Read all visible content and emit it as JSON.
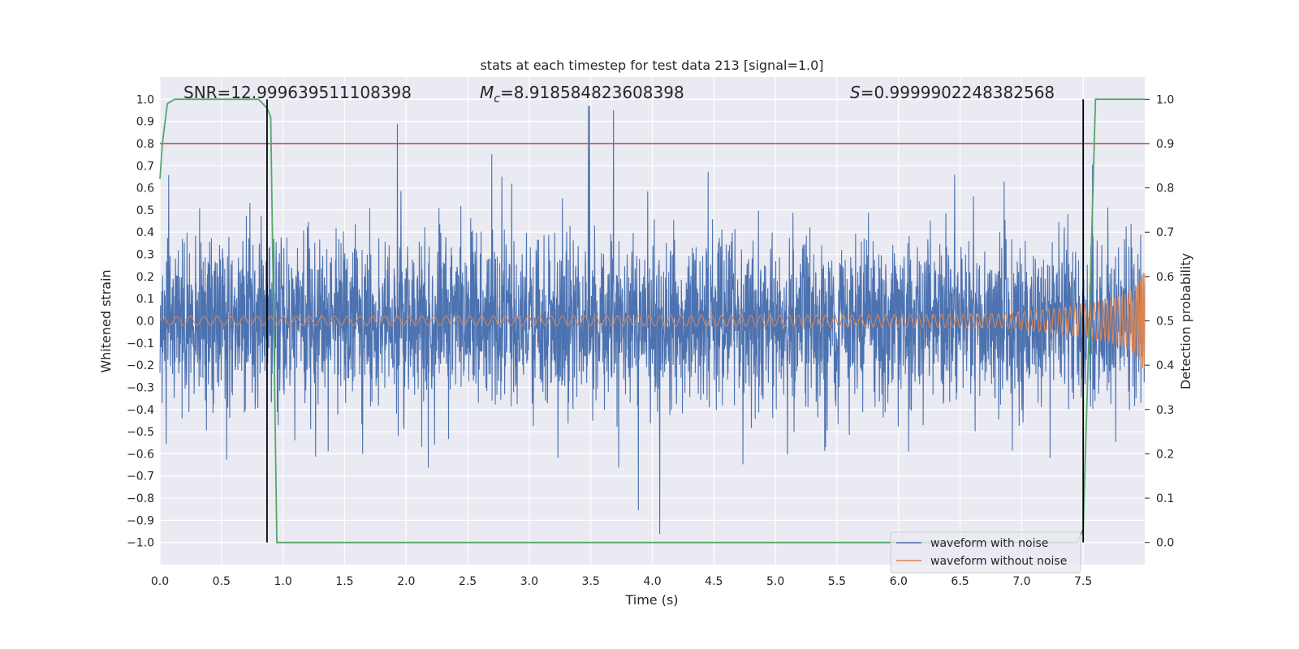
{
  "chart_data": {
    "type": "line",
    "title": "stats at each timestep for test data 213 [signal=1.0]",
    "xlabel": "Time (s)",
    "ylabel": "Whitened strain",
    "y2label": "Detection probability",
    "xlim": [
      0.0,
      8.0
    ],
    "ylim": [
      -1.1,
      1.1
    ],
    "y2lim": [
      -0.05,
      1.05
    ],
    "x_ticks": [
      "0.0",
      "0.5",
      "1.0",
      "1.5",
      "2.0",
      "2.5",
      "3.0",
      "3.5",
      "4.0",
      "4.5",
      "5.0",
      "5.5",
      "6.0",
      "6.5",
      "7.0",
      "7.5"
    ],
    "y_ticks": [
      "−1.0",
      "−0.9",
      "−0.8",
      "−0.7",
      "−0.6",
      "−0.5",
      "−0.4",
      "−0.3",
      "−0.2",
      "−0.1",
      "0.0",
      "0.1",
      "0.2",
      "0.3",
      "0.4",
      "0.5",
      "0.6",
      "0.7",
      "0.8",
      "0.9",
      "1.0"
    ],
    "y2_ticks": [
      "0.0",
      "0.1",
      "0.2",
      "0.3",
      "0.4",
      "0.5",
      "0.6",
      "0.7",
      "0.8",
      "0.9",
      "1.0"
    ],
    "grid": true,
    "legend": "lower-right",
    "annotations": {
      "snr": "SNR=12.999639511108398",
      "mc_symbol": "M",
      "mc_sub": "c",
      "mc_value": "=8.918584823608398",
      "s_symbol": "S",
      "s_value": "=0.9999902248382568"
    },
    "series": [
      {
        "name": "waveform with noise",
        "color": "#4c72b0",
        "kind": "noise",
        "approx_envelope": [
          -0.45,
          0.45
        ],
        "approx_extremes": [
          -1.0,
          0.97
        ]
      },
      {
        "name": "waveform without noise",
        "color": "#dd8452",
        "kind": "chirp",
        "approx_amplitude_start": 0.02,
        "approx_amplitude_end": 0.32,
        "merger_time": 8.0
      },
      {
        "color": "#55a868",
        "axis": "right",
        "x": [
          0.0,
          0.02,
          0.06,
          0.12,
          0.8,
          0.87,
          0.9,
          0.95,
          7.45,
          7.5,
          7.55,
          7.6,
          8.0
        ],
        "y": [
          0.82,
          0.9,
          0.99,
          1.0,
          1.0,
          0.98,
          0.96,
          0.0,
          0.0,
          0.03,
          0.5,
          1.0,
          1.0
        ]
      }
    ],
    "threshold": {
      "color": "#c44e52",
      "y2": 0.9
    },
    "vlines": {
      "color": "#000000",
      "x": [
        0.87,
        7.5
      ],
      "y2_range": [
        0.0,
        1.0
      ]
    }
  }
}
